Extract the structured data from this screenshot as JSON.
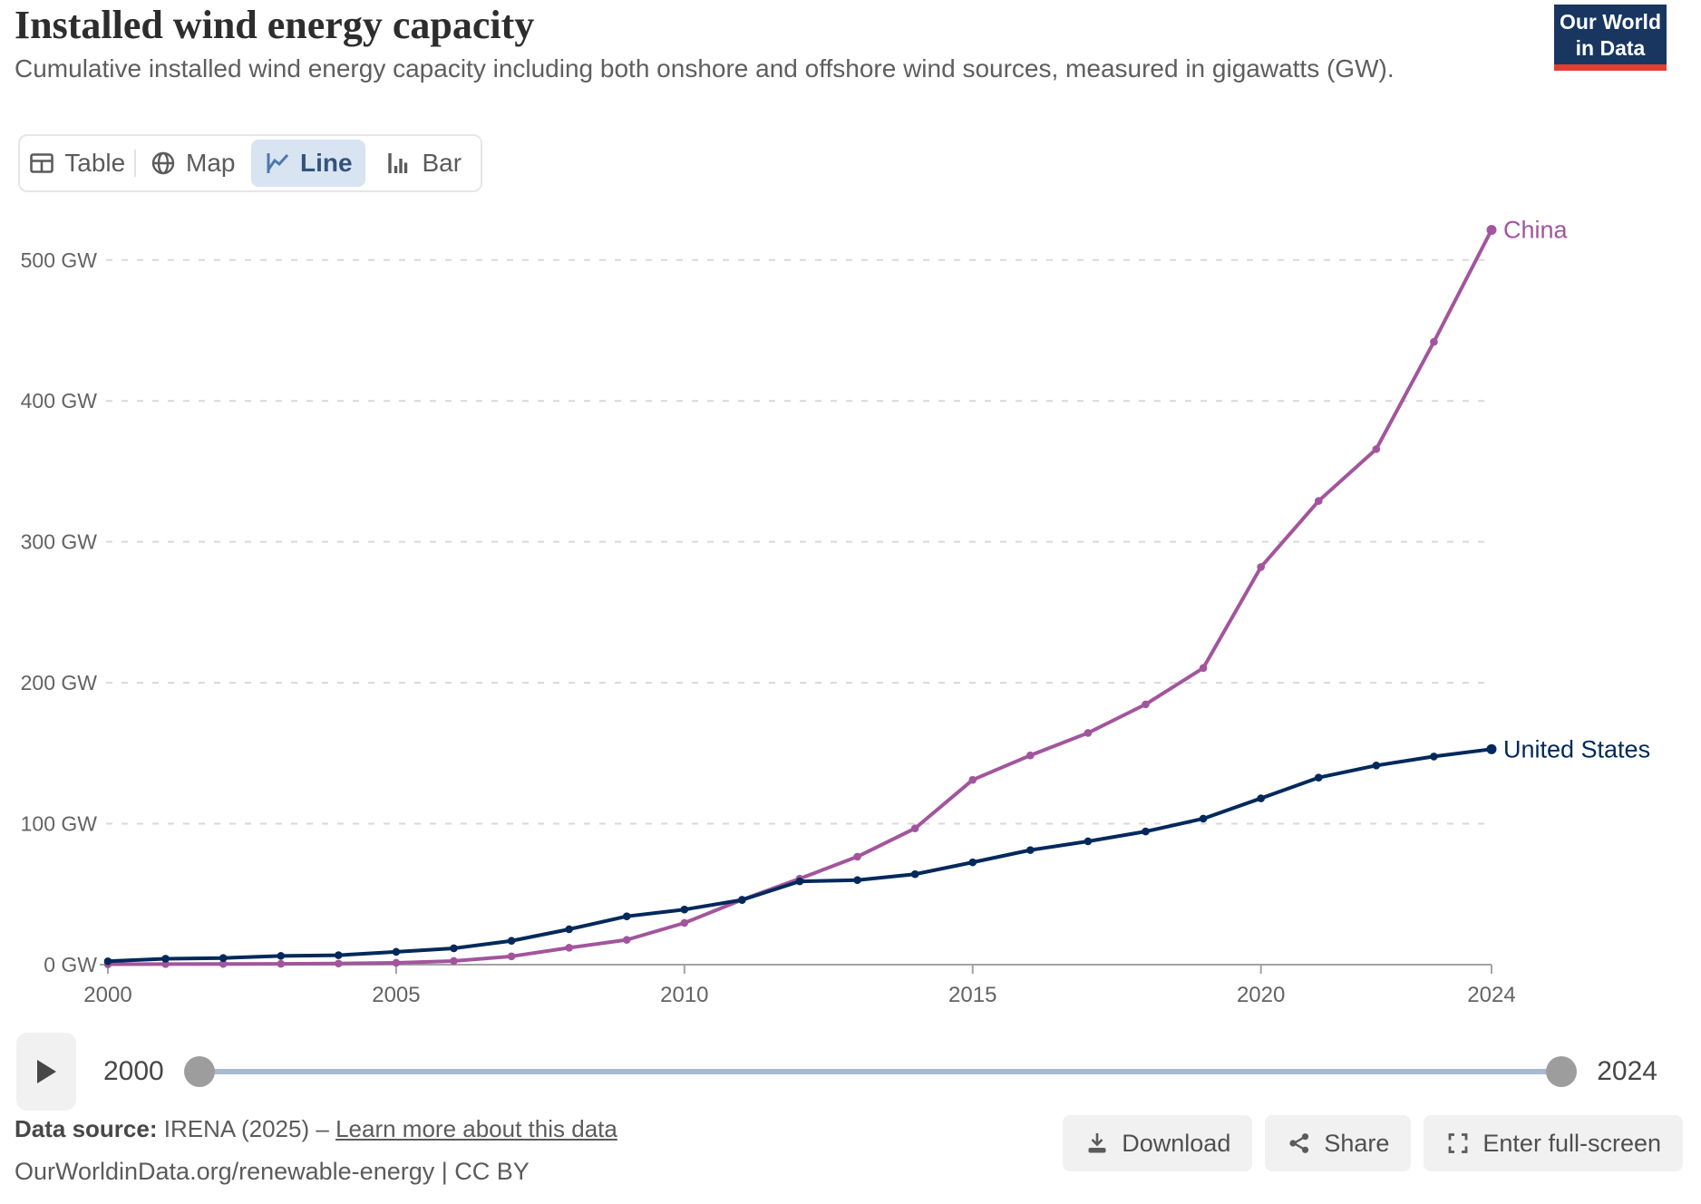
{
  "header": {
    "title": "Installed wind energy capacity",
    "subtitle": "Cumulative installed wind energy capacity including both onshore and offshore wind sources, measured in gigawatts (GW)."
  },
  "logo": {
    "line1": "Our World",
    "line2": "in Data",
    "bg_color": "#18365f",
    "accent_color": "#e23d33"
  },
  "tabs": [
    {
      "label": "Table",
      "icon": "table-icon",
      "selected": false
    },
    {
      "label": "Map",
      "icon": "globe-icon",
      "selected": false
    },
    {
      "label": "Line",
      "icon": "line-chart-icon",
      "selected": true
    },
    {
      "label": "Bar",
      "icon": "bar-chart-icon",
      "selected": false
    }
  ],
  "chart_data": {
    "type": "line",
    "title": "Installed wind energy capacity",
    "unit": "GW",
    "grid": "horizontal-dashed",
    "legend_position": "end-of-line-labels",
    "x": [
      2000,
      2001,
      2002,
      2003,
      2004,
      2005,
      2006,
      2007,
      2008,
      2009,
      2010,
      2011,
      2012,
      2013,
      2014,
      2015,
      2016,
      2017,
      2018,
      2019,
      2020,
      2021,
      2022,
      2023,
      2024
    ],
    "x_ticks": [
      2000,
      2005,
      2010,
      2015,
      2020,
      2024
    ],
    "y_ticks": [
      {
        "value": 0,
        "label": "0 GW"
      },
      {
        "value": 100,
        "label": "100 GW"
      },
      {
        "value": 200,
        "label": "200 GW"
      },
      {
        "value": 300,
        "label": "300 GW"
      },
      {
        "value": 400,
        "label": "400 GW"
      },
      {
        "value": 500,
        "label": "500 GW"
      }
    ],
    "ylim": [
      0,
      540
    ],
    "series": [
      {
        "name": "China",
        "color": "#a2559c",
        "values": [
          0.3,
          0.4,
          0.5,
          0.6,
          0.8,
          1.3,
          2.6,
          5.9,
          12.0,
          17.6,
          29.6,
          46.1,
          61.0,
          76.6,
          96.7,
          131.1,
          148.5,
          164.4,
          184.7,
          210.5,
          282.1,
          329.0,
          365.8,
          441.9,
          521.3
        ]
      },
      {
        "name": "United States",
        "color": "#00295b",
        "values": [
          2.4,
          4.2,
          4.7,
          6.2,
          6.7,
          9.1,
          11.6,
          16.9,
          25.1,
          34.3,
          39.1,
          45.9,
          59.1,
          60.0,
          64.2,
          72.6,
          81.3,
          87.5,
          94.5,
          103.6,
          118.0,
          132.7,
          141.3,
          147.7,
          152.9
        ]
      }
    ]
  },
  "timeline": {
    "start_label": "2000",
    "end_label": "2024"
  },
  "footer": {
    "datasource_label": "Data source:",
    "datasource_value": "IRENA (2025)",
    "separator": "–",
    "link_label": "Learn more about this data",
    "citation": "OurWorldinData.org/renewable-energy | CC BY"
  },
  "actions": [
    {
      "label": "Download",
      "icon": "download-icon"
    },
    {
      "label": "Share",
      "icon": "share-icon"
    },
    {
      "label": "Enter full-screen",
      "icon": "fullscreen-icon"
    }
  ]
}
